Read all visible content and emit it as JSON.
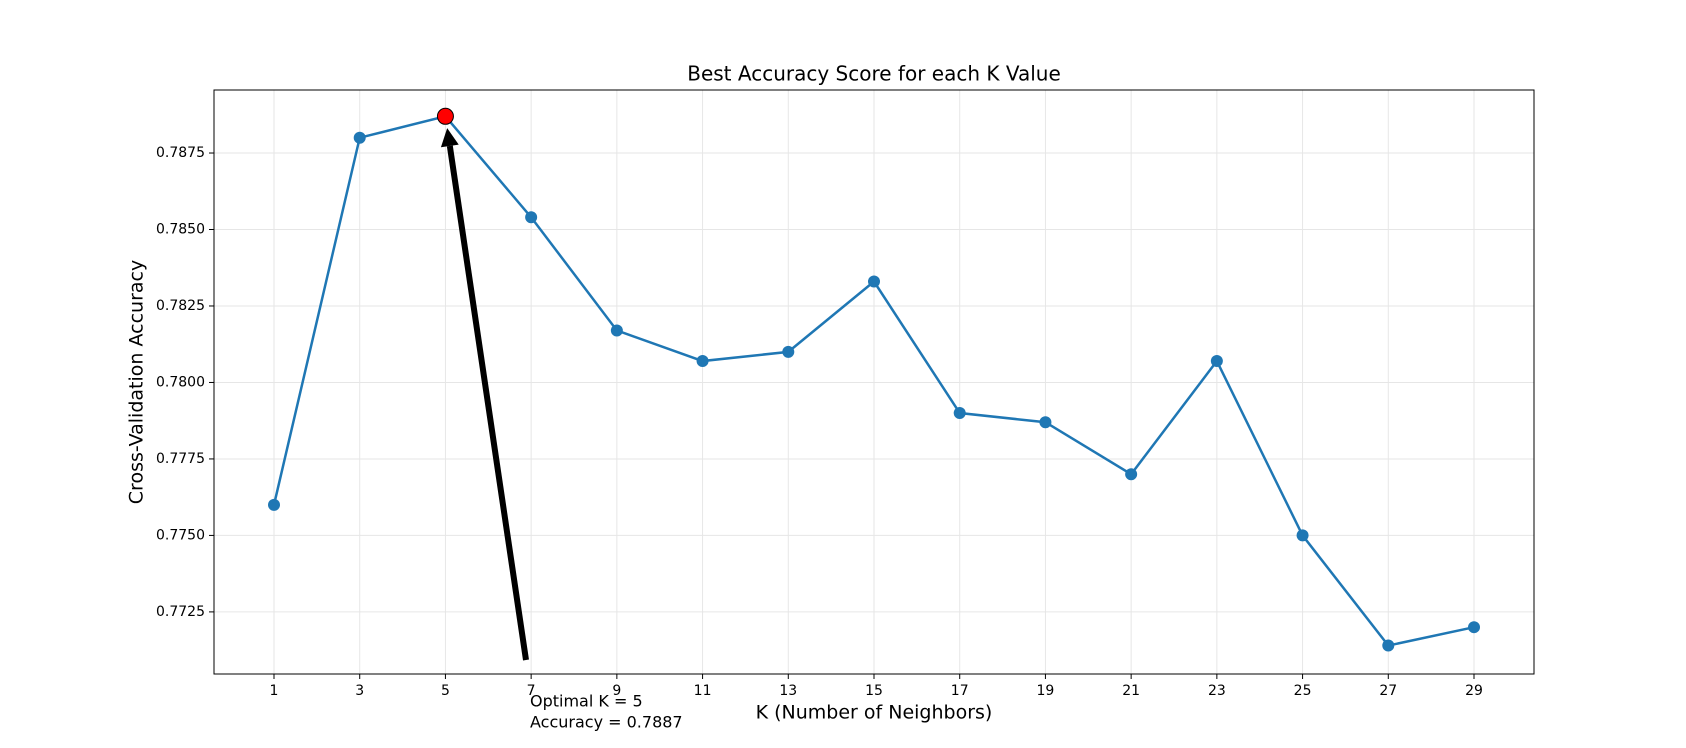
{
  "chart_data": {
    "type": "line",
    "title": "Best Accuracy Score for each K Value",
    "xlabel": "K (Number of Neighbors)",
    "ylabel": "Cross-Validation Accuracy",
    "x": [
      1,
      3,
      5,
      7,
      9,
      11,
      13,
      15,
      17,
      19,
      21,
      23,
      25,
      27,
      29
    ],
    "series": [
      {
        "color": "#1f77b4",
        "values": [
          0.776,
          0.788,
          0.7887,
          0.7854,
          0.7817,
          0.7807,
          0.781,
          0.7833,
          0.779,
          0.7787,
          0.777,
          0.7807,
          0.775,
          0.7714,
          0.772
        ]
      }
    ],
    "xlim": [
      -0.4,
      30.4
    ],
    "xticks": [
      1,
      3,
      5,
      7,
      9,
      11,
      13,
      15,
      17,
      19,
      21,
      23,
      25,
      27,
      29
    ],
    "ylim": [
      0.77047,
      0.78956
    ],
    "yticks": [
      0.7725,
      {
        "value": 0.775,
        "label": "0.7750"
      },
      0.7775,
      {
        "value": 0.78,
        "label": "0.7800"
      },
      0.7825,
      {
        "value": 0.785,
        "label": "0.7850"
      },
      0.7875
    ],
    "grid": true,
    "annotation": {
      "text": [
        "Optimal K = 5",
        "Accuracy = 0.7887"
      ],
      "x": 5,
      "y": 0.7887,
      "color": "#ff0000"
    }
  }
}
